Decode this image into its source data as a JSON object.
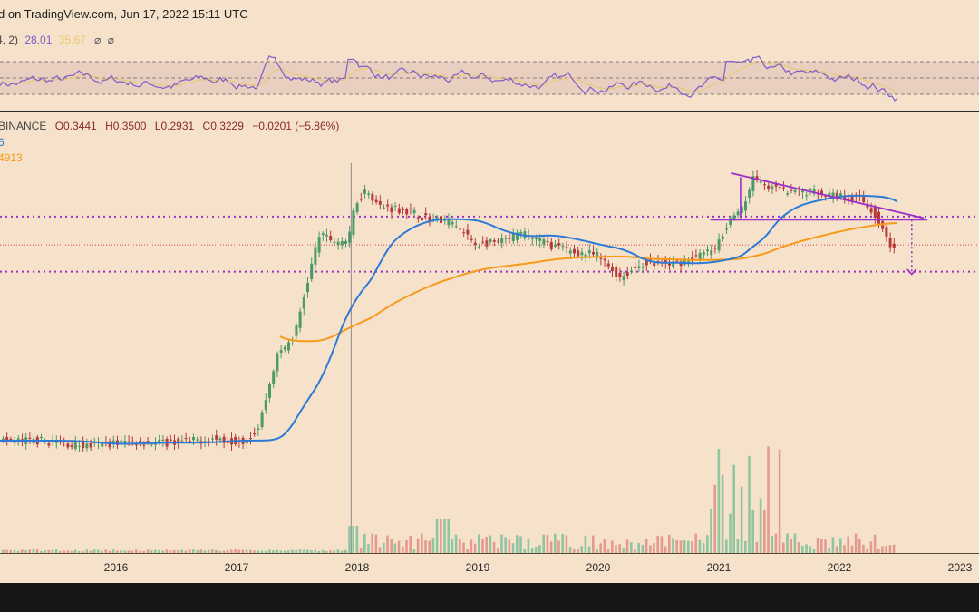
{
  "header": {
    "source_text": "d on TradingView.com, Jun 17, 2022 15:11 UTC"
  },
  "rsi_legend": {
    "params": "4, 2)",
    "value1": "28.01",
    "value2": "35.67",
    "icons": [
      "null-icon",
      "null-icon"
    ]
  },
  "price_legend": {
    "exchange": "BINANCE",
    "open": "O0.3441",
    "high": "H0.3500",
    "low": "L0.2931",
    "close": "C0.3229",
    "change": "−0.0201 (−5.86%)",
    "ma_short": "6",
    "ma_long": "4913"
  },
  "colors": {
    "background": "#f6e2cb",
    "ma_short": "#2d7ad6",
    "ma_long": "#f79a1a",
    "rsi": "#7e5cc9",
    "rsi_ma": "#e8c86a",
    "pattern": "#9b2fc9",
    "level": "#9b2fc9",
    "candle_up": "#4c9a6a",
    "candle_down": "#b63a3a"
  },
  "chart_data": {
    "type": "line",
    "x": [
      2015.4,
      2015.6,
      2015.8,
      2016.0,
      2016.2,
      2016.4,
      2016.6,
      2016.8,
      2017.0,
      2017.1,
      2017.2,
      2017.35,
      2017.5,
      2017.7,
      2017.85,
      2017.95,
      2018.0,
      2018.1,
      2018.2,
      2018.4,
      2018.6,
      2018.8,
      2019.0,
      2019.2,
      2019.4,
      2019.6,
      2019.8,
      2020.0,
      2020.2,
      2020.4,
      2020.6,
      2020.8,
      2021.0,
      2021.1,
      2021.2,
      2021.3,
      2021.4,
      2021.6,
      2021.8,
      2022.0,
      2022.2,
      2022.3,
      2022.45
    ],
    "series": [
      {
        "values": [
          0.0045,
          0.0042,
          0.004,
          0.0043,
          0.0044,
          0.0043,
          0.0044,
          0.0047,
          0.0045,
          0.0046,
          0.006,
          0.028,
          0.045,
          0.4,
          0.35,
          0.36,
          0.8,
          1.1,
          0.75,
          0.7,
          0.58,
          0.53,
          0.33,
          0.34,
          0.42,
          0.33,
          0.28,
          0.26,
          0.16,
          0.22,
          0.21,
          0.24,
          0.3,
          0.56,
          0.64,
          1.4,
          1.2,
          1.0,
          1.05,
          0.95,
          0.87,
          0.66,
          0.3229
        ]
      }
    ],
    "x_ticks": [
      "5",
      "2016",
      "2017",
      "2018",
      "2019",
      "2020",
      "2021",
      "2022",
      "2023"
    ],
    "y_scale": "log",
    "resistance_level": 0.6,
    "support_level": 0.18,
    "ma_short_last": 0.62,
    "ma_long_last": 0.53
  }
}
